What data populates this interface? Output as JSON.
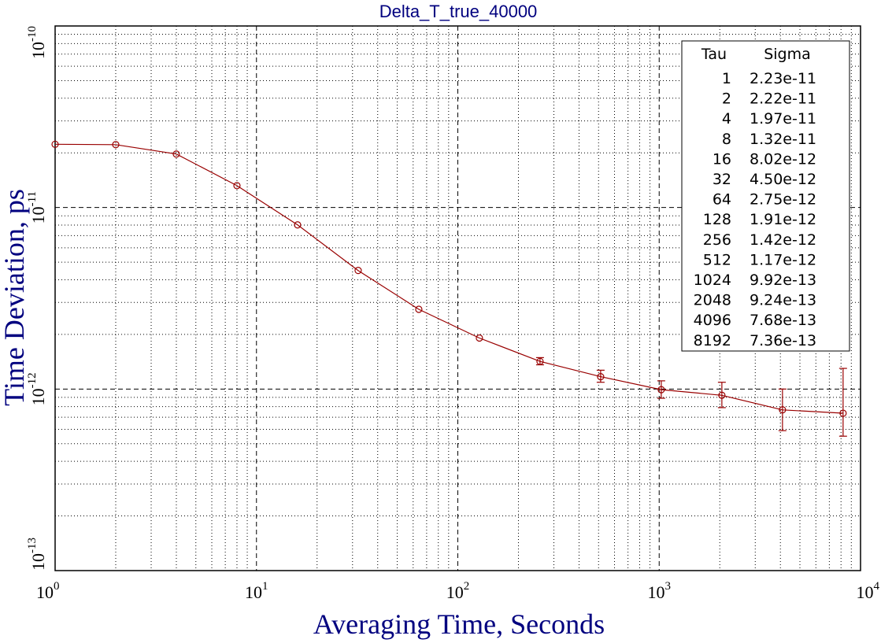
{
  "chart_data": {
    "type": "line",
    "title": "Delta_T_true_40000",
    "xlabel": "Averaging Time, Seconds",
    "ylabel": "Time Deviation, ps",
    "x_scale": "log",
    "y_scale": "log",
    "xlim": [
      1,
      10000
    ],
    "ylim": [
      1e-13,
      1e-10
    ],
    "x_ticks": [
      {
        "base": "10",
        "exp": "0",
        "value": 1
      },
      {
        "base": "10",
        "exp": "1",
        "value": 10
      },
      {
        "base": "10",
        "exp": "2",
        "value": 100
      },
      {
        "base": "10",
        "exp": "3",
        "value": 1000
      },
      {
        "base": "10",
        "exp": "4",
        "value": 10000
      }
    ],
    "y_ticks": [
      {
        "base": "10",
        "exp": "-13",
        "value": 1e-13
      },
      {
        "base": "10",
        "exp": "-12",
        "value": 1e-12
      },
      {
        "base": "10",
        "exp": "-11",
        "value": 1e-11
      },
      {
        "base": "10",
        "exp": "-10",
        "value": 1e-10
      }
    ],
    "grid": true,
    "color": "#990000",
    "series": [
      {
        "x": [
          1,
          2,
          4,
          8,
          16,
          32,
          64,
          128,
          256,
          512,
          1024,
          2048,
          4096,
          8192
        ],
        "y": [
          2.23e-11,
          2.22e-11,
          1.97e-11,
          1.32e-11,
          8.02e-12,
          4.5e-12,
          2.75e-12,
          1.91e-12,
          1.42e-12,
          1.17e-12,
          9.92e-13,
          9.24e-13,
          7.68e-13,
          7.36e-13
        ],
        "err_low": [
          null,
          null,
          null,
          null,
          null,
          null,
          null,
          null,
          1.36e-12,
          1.09e-12,
          8.9e-13,
          7.9e-13,
          5.9e-13,
          5.5e-13
        ],
        "err_high": [
          null,
          null,
          null,
          null,
          null,
          null,
          null,
          null,
          1.49e-12,
          1.27e-12,
          1.11e-12,
          1.09e-12,
          1e-12,
          1.3e-12
        ]
      }
    ],
    "legend": {
      "placement": "top-right",
      "headers": [
        "Tau",
        "Sigma"
      ],
      "rows": [
        [
          "1",
          "2.23e-11"
        ],
        [
          "2",
          "2.22e-11"
        ],
        [
          "4",
          "1.97e-11"
        ],
        [
          "8",
          "1.32e-11"
        ],
        [
          "16",
          "8.02e-12"
        ],
        [
          "32",
          "4.50e-12"
        ],
        [
          "64",
          "2.75e-12"
        ],
        [
          "128",
          "1.91e-12"
        ],
        [
          "256",
          "1.42e-12"
        ],
        [
          "512",
          "1.17e-12"
        ],
        [
          "1024",
          "9.92e-13"
        ],
        [
          "2048",
          "9.24e-13"
        ],
        [
          "4096",
          "7.68e-13"
        ],
        [
          "8192",
          "7.36e-13"
        ]
      ]
    }
  }
}
